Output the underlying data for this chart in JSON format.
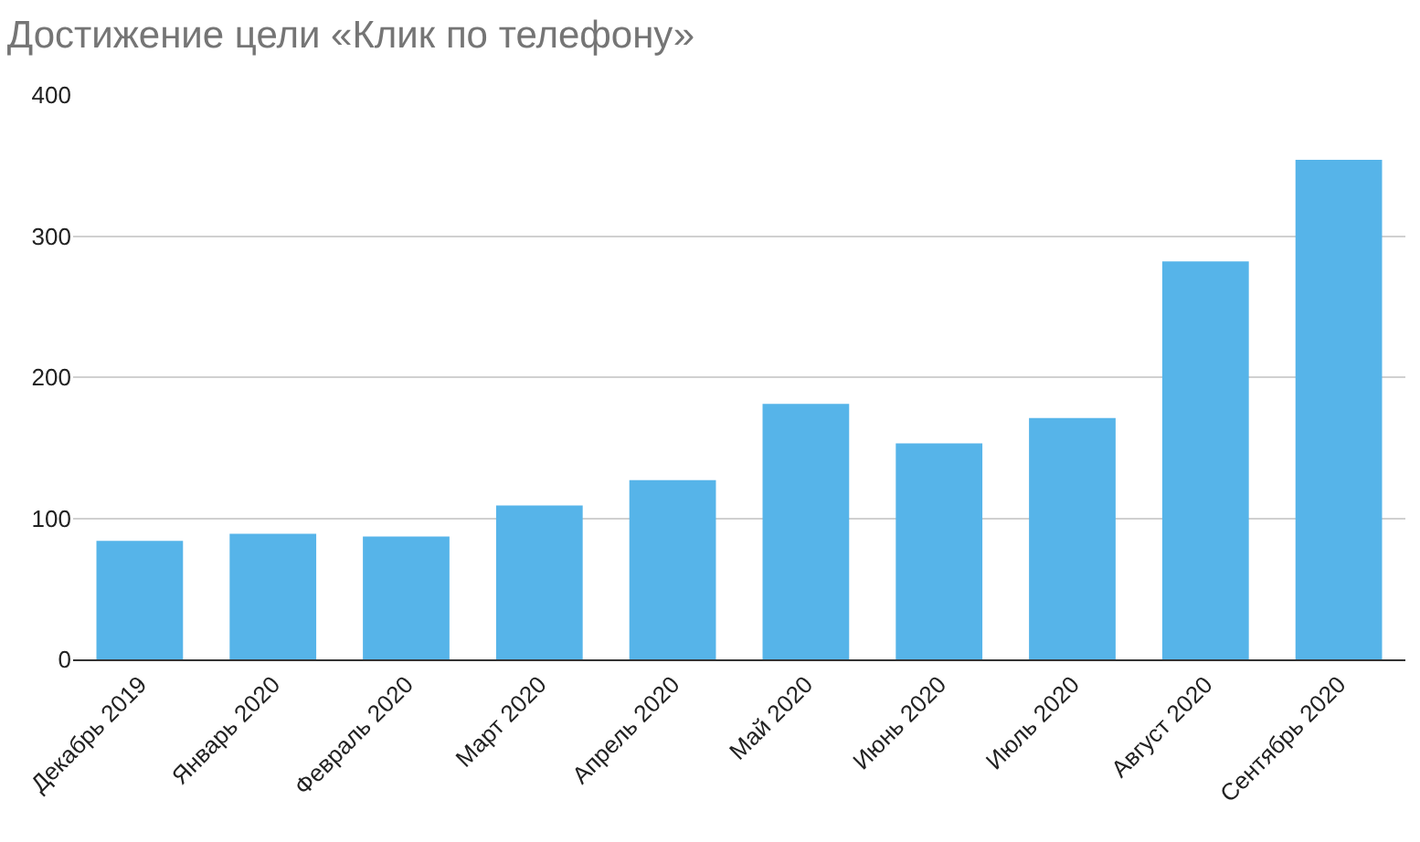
{
  "chart_data": {
    "type": "bar",
    "title": "Достижение цели «Клик по телефону»",
    "categories": [
      "Декабрь 2019",
      "Январь 2020",
      "Февраль 2020",
      "Март 2020",
      "Апрель 2020",
      "Май 2020",
      "Июнь 2020",
      "Июль 2020",
      "Август 2020",
      "Сентябрь 2020"
    ],
    "values": [
      84,
      89,
      87,
      109,
      127,
      181,
      153,
      171,
      282,
      354
    ],
    "color": "#56b4e9",
    "ylim": [
      0,
      400
    ],
    "yticks": [
      0,
      100,
      200,
      300,
      400
    ],
    "grid": "y",
    "legend": false
  }
}
